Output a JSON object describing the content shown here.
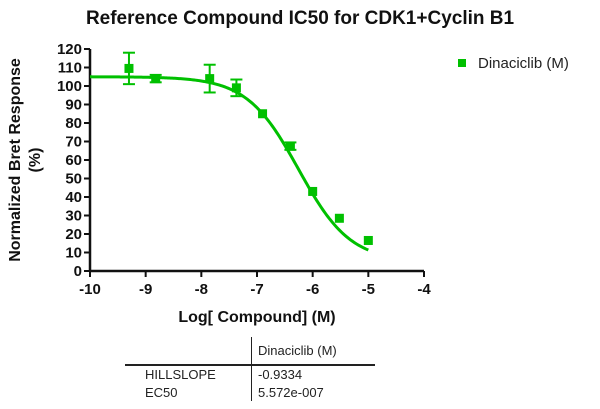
{
  "chart_data": {
    "type": "scatter",
    "title": "Reference Compound IC50 for CDK1+Cyclin B1",
    "xlabel": "Log[ Compound] (M)",
    "ylabel": "Normalized Bret Response",
    "ylabel_line2": "(%)",
    "xlim": [
      -10,
      -4
    ],
    "ylim": [
      0,
      120
    ],
    "xticks": [
      -10,
      -9,
      -8,
      -7,
      -6,
      -5,
      -4
    ],
    "xtick_labels": [
      "-10",
      "-9",
      "-8",
      "-7",
      "-6",
      "-5",
      "-4"
    ],
    "yticks": [
      0,
      10,
      20,
      30,
      40,
      50,
      60,
      70,
      80,
      90,
      100,
      110,
      120
    ],
    "ytick_labels": [
      "0",
      "10",
      "20",
      "30",
      "40",
      "50",
      "60",
      "70",
      "80",
      "90",
      "100",
      "110",
      "120"
    ],
    "grid": false,
    "legend_position": "top-right",
    "series": [
      {
        "name": "Dinaciclib (M)",
        "color": "#00c000",
        "marker": "square",
        "points": [
          {
            "x": -9.3,
            "y": 109.5,
            "err": 8.5
          },
          {
            "x": -8.82,
            "y": 104.0,
            "err": 2.0
          },
          {
            "x": -7.85,
            "y": 104.0,
            "err": 7.5
          },
          {
            "x": -7.37,
            "y": 99.0,
            "err": 4.5
          },
          {
            "x": -6.9,
            "y": 85.0,
            "err": 1.0
          },
          {
            "x": -6.4,
            "y": 67.5,
            "err": 2.0
          },
          {
            "x": -6.0,
            "y": 43.0,
            "err": 1.0
          },
          {
            "x": -5.52,
            "y": 28.5,
            "err": 1.0
          },
          {
            "x": -5.0,
            "y": 16.5,
            "err": 1.0
          }
        ],
        "fit": {
          "model": "four-parameter logistic",
          "top": 105,
          "bottom": 5,
          "logEC50": -6.254,
          "hillslope": -0.9334,
          "x_range": [
            -10,
            -5
          ]
        }
      }
    ],
    "results_table": {
      "column_header": "Dinaciclib (M)",
      "rows": [
        {
          "label": "HILLSLOPE",
          "value": "-0.9334"
        },
        {
          "label": "EC50",
          "value": "5.572e-007"
        }
      ]
    }
  }
}
